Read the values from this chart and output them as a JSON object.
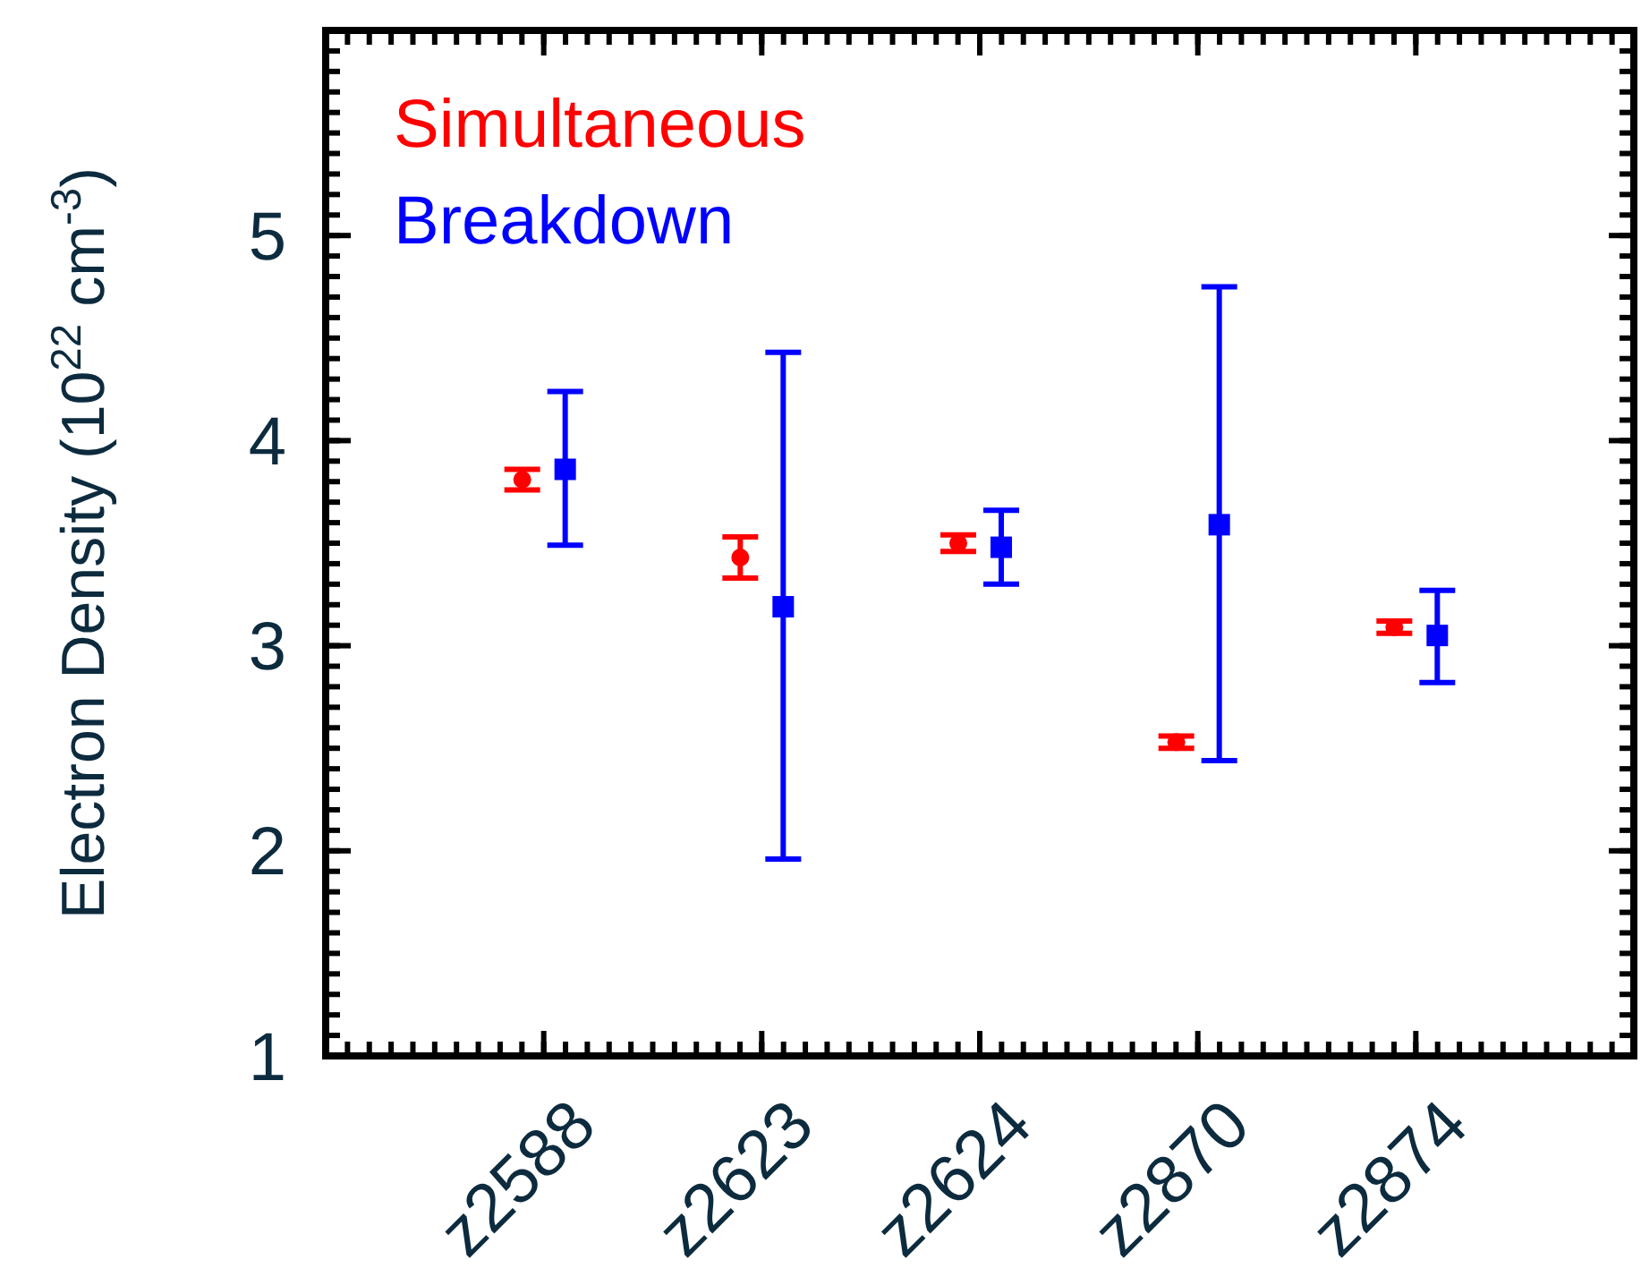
{
  "chart_data": {
    "type": "scatter",
    "ylabel": "Electron Density (10$^{22}$ cm$^{-3}$)",
    "categories": [
      "z2588",
      "z2623",
      "z2624",
      "z2870",
      "z2874"
    ],
    "ylim": [
      1,
      6
    ],
    "yticks": [
      1,
      2,
      3,
      4,
      5
    ],
    "grid": false,
    "legend": "top left",
    "series": [
      {
        "name": "Simultaneous",
        "color": "#ff0000",
        "marker": "circle",
        "values": [
          3.81,
          3.43,
          3.5,
          2.53,
          3.09
        ],
        "errors": [
          0.05,
          0.1,
          0.04,
          0.03,
          0.03
        ]
      },
      {
        "name": "Breakdown",
        "color": "#0000ff",
        "marker": "square",
        "values": [
          3.86,
          3.19,
          3.48,
          3.59,
          3.05
        ],
        "errors": [
          [
            3.49,
            4.24
          ],
          [
            1.96,
            4.43
          ],
          [
            3.3,
            3.66
          ],
          [
            2.44,
            4.75
          ],
          [
            2.82,
            3.27
          ]
        ]
      }
    ]
  }
}
